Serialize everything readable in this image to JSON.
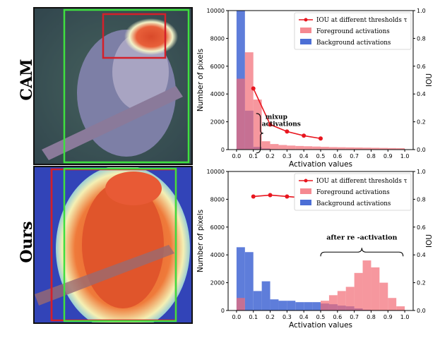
{
  "rows": [
    {
      "label": "CAM"
    },
    {
      "label": "Ours"
    }
  ],
  "colors": {
    "foreground": "#f26b75",
    "background": "#4c6fd6",
    "iou": "#e8161f",
    "gt_box": "#3fe03f",
    "pred_box": "#d4202a"
  },
  "chart_data": [
    {
      "type": "bar",
      "ylabel": "Number of pixels",
      "ylabel_right": "IOU",
      "xlabel": "Activation values",
      "xlim": [
        -0.05,
        1.05
      ],
      "ylim": [
        0,
        10000
      ],
      "ylim_right": [
        0,
        1.0
      ],
      "xticks": [
        "0.0",
        "0.1",
        "0.2",
        "0.3",
        "0.4",
        "0.5",
        "0.6",
        "0.7",
        "0.8",
        "0.9",
        "1.0"
      ],
      "yticks": [
        "0",
        "2000",
        "4000",
        "6000",
        "8000",
        "10000"
      ],
      "yticks_right": [
        "0.0",
        "0.2",
        "0.4",
        "0.6",
        "0.8",
        "1.0"
      ],
      "bin_width": 0.05,
      "legend": [
        "IOU at different thresholds  τ",
        "Foreground activations",
        "Background activations"
      ],
      "legend_placement": "top-right",
      "annotation": {
        "text": [
          "mixup",
          "activations"
        ],
        "x": 0.1,
        "y": 1300
      },
      "series": [
        {
          "name": "Background activations",
          "bins": [
            0.0,
            0.05,
            0.1,
            0.15,
            0.2
          ],
          "values": [
            10000,
            2800,
            200,
            80,
            30
          ]
        },
        {
          "name": "Foreground activations",
          "bins": [
            0.0,
            0.05,
            0.1,
            0.15,
            0.2,
            0.25,
            0.3,
            0.35,
            0.4,
            0.45,
            0.5,
            0.55,
            0.6,
            0.65,
            0.7,
            0.75,
            0.8,
            0.85,
            0.9,
            0.95
          ],
          "values": [
            5100,
            7000,
            3600,
            600,
            400,
            330,
            290,
            260,
            240,
            220,
            200,
            180,
            170,
            160,
            150,
            140,
            130,
            120,
            110,
            100
          ]
        },
        {
          "name": "IOU at different thresholds  τ",
          "x": [
            0.1,
            0.2,
            0.3,
            0.4,
            0.5
          ],
          "values": [
            0.44,
            0.18,
            0.13,
            0.1,
            0.08
          ]
        }
      ]
    },
    {
      "type": "bar",
      "ylabel": "Number of pixels",
      "ylabel_right": "IOU",
      "xlabel": "Activation values",
      "xlim": [
        -0.05,
        1.05
      ],
      "ylim": [
        0,
        10000
      ],
      "ylim_right": [
        0,
        1.0
      ],
      "xticks": [
        "0.0",
        "0.1",
        "0.2",
        "0.3",
        "0.4",
        "0.5",
        "0.6",
        "0.7",
        "0.8",
        "0.9",
        "1.0"
      ],
      "yticks": [
        "0",
        "2000",
        "4000",
        "6000",
        "8000",
        "10000"
      ],
      "yticks_right": [
        "0.0",
        "0.2",
        "0.4",
        "0.6",
        "0.8",
        "1.0"
      ],
      "bin_width": 0.05,
      "legend": [
        "IOU at different thresholds  τ",
        "Foreground activations",
        "Background activations"
      ],
      "legend_placement": "top-right",
      "annotation": {
        "text": [
          "after re -activation"
        ],
        "x": 0.75,
        "y": 4900
      },
      "series": [
        {
          "name": "Background activations",
          "bins": [
            0.0,
            0.05,
            0.1,
            0.15,
            0.2,
            0.25,
            0.3,
            0.35,
            0.4,
            0.45,
            0.5,
            0.55,
            0.6,
            0.65,
            0.7,
            0.75
          ],
          "values": [
            4550,
            4200,
            1400,
            2100,
            800,
            700,
            700,
            600,
            600,
            600,
            500,
            450,
            350,
            300,
            150,
            50
          ]
        },
        {
          "name": "Foreground activations",
          "bins": [
            0.0,
            0.5,
            0.55,
            0.6,
            0.65,
            0.7,
            0.75,
            0.8,
            0.85,
            0.9,
            0.95
          ],
          "values": [
            900,
            700,
            1100,
            1400,
            1700,
            2700,
            3600,
            3100,
            2000,
            900,
            300
          ]
        },
        {
          "name": "IOU at different thresholds  τ",
          "x": [
            0.1,
            0.2,
            0.3,
            0.4,
            0.5
          ],
          "values": [
            0.82,
            0.83,
            0.82,
            0.81,
            0.81
          ]
        }
      ]
    }
  ]
}
